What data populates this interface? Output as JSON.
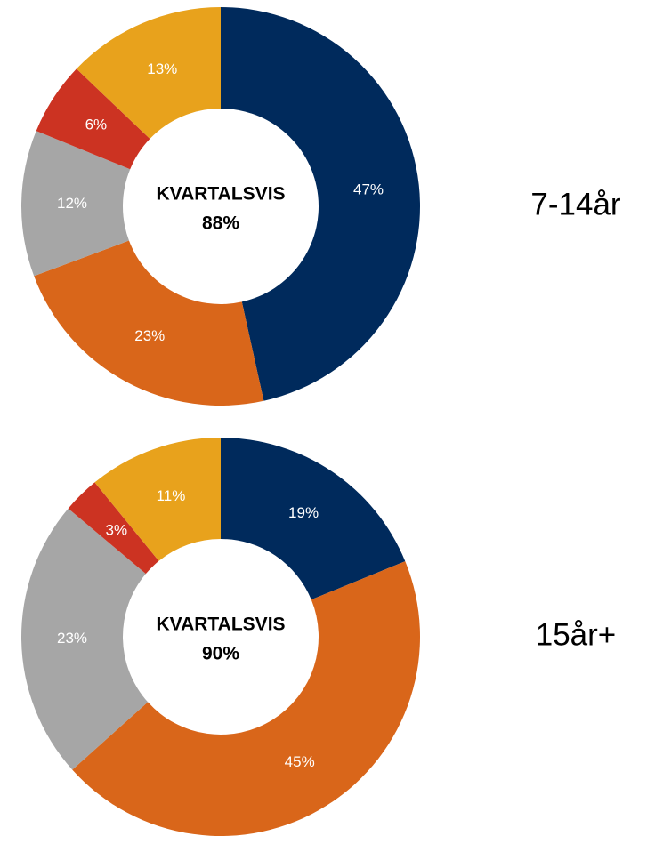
{
  "chart_data": [
    {
      "type": "donut",
      "title": "7-14år",
      "center_text": [
        "KVARTALSVIS",
        "88%"
      ],
      "values": [
        47,
        23,
        12,
        6,
        13
      ],
      "value_labels": [
        "47%",
        "23%",
        "12%",
        "6%",
        "13%"
      ],
      "colors": [
        "#002a5c",
        "#d9661a",
        "#a6a6a6",
        "#cc3322",
        "#e8a21c"
      ]
    },
    {
      "type": "donut",
      "title": "15år+",
      "center_text": [
        "KVARTALSVIS",
        "90%"
      ],
      "values": [
        19,
        45,
        23,
        3,
        11
      ],
      "value_labels": [
        "19%",
        "45%",
        "23%",
        "3%",
        "11%"
      ],
      "colors": [
        "#002a5c",
        "#d9661a",
        "#a6a6a6",
        "#cc3322",
        "#e8a21c"
      ]
    }
  ]
}
